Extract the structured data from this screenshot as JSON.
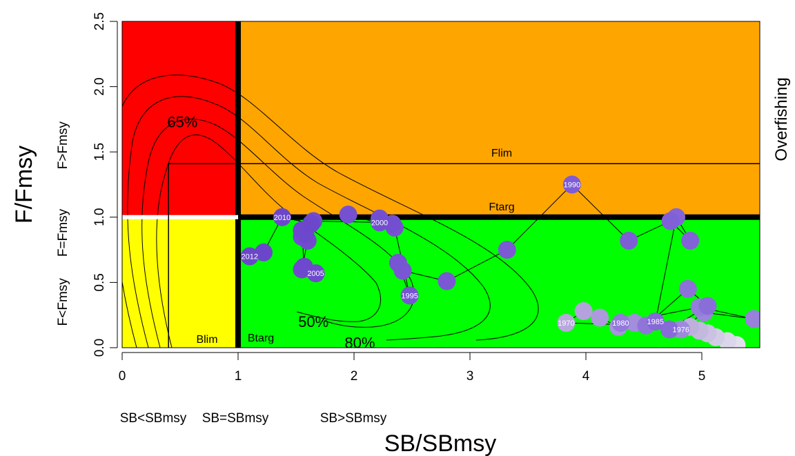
{
  "chart_data": {
    "type": "scatter",
    "xlabel": "SB/SBmsy",
    "ylabel": "F/Fmsy",
    "right_label": "Overfishing",
    "xlim": [
      0,
      5.5
    ],
    "ylim": [
      0,
      2.5
    ],
    "x_ticks": [
      0,
      1,
      2,
      3,
      4,
      5
    ],
    "y_ticks": [
      0.0,
      0.5,
      1.0,
      1.5,
      2.0,
      2.5
    ],
    "y_tick_labels": [
      "0.0",
      "0.5",
      "1.0",
      "1.5",
      "2.0",
      "2.5"
    ],
    "y_side_labels": [
      "F<Fmsy",
      "F=Fmsy",
      "F>Fmsy"
    ],
    "x_side_labels": [
      "SB<SBmsy",
      "SB=SBmsy",
      "SB>SBmsy"
    ],
    "zones": [
      {
        "name": "overfished-overfishing",
        "x": [
          0,
          1
        ],
        "y": [
          1,
          2.5
        ],
        "color": "#ff0000"
      },
      {
        "name": "not-overfished-overfishing",
        "x": [
          1,
          5.5
        ],
        "y": [
          1,
          2.5
        ],
        "color": "#ffa500"
      },
      {
        "name": "overfished-no-overfishing",
        "x": [
          0,
          1
        ],
        "y": [
          0,
          1
        ],
        "color": "#ffff00"
      },
      {
        "name": "sustainable",
        "x": [
          1,
          5.5
        ],
        "y": [
          0,
          1
        ],
        "color": "#00ff00"
      }
    ],
    "reference_lines": {
      "Flim": 1.41,
      "Ftarg": 1.0,
      "Blim": 0.4,
      "Btarg": 1.0
    },
    "reference_labels": {
      "Flim": "Flim",
      "Ftarg": "Ftarg",
      "Blim": "Blim",
      "Btarg": "Btarg"
    },
    "contour_labels": [
      {
        "text": "65%",
        "x": 0.52,
        "y": 1.73
      },
      {
        "text": "50%",
        "x": 1.65,
        "y": 0.2
      },
      {
        "text": "80%",
        "x": 2.05,
        "y": 0.04
      }
    ],
    "trajectory": [
      {
        "year": "",
        "x": 5.3,
        "y": 0.02,
        "c": "#e3dfee"
      },
      {
        "year": "",
        "x": 5.22,
        "y": 0.05,
        "c": "#dcd6ea"
      },
      {
        "year": "",
        "x": 5.12,
        "y": 0.08,
        "c": "#d3cce6"
      },
      {
        "year": "",
        "x": 5.05,
        "y": 0.11,
        "c": "#cbc2e2"
      },
      {
        "year": "",
        "x": 4.98,
        "y": 0.13,
        "c": "#c3b8de"
      },
      {
        "year": "",
        "x": 4.9,
        "y": 0.16,
        "c": "#bdb0dc"
      },
      {
        "year": "1970",
        "x": 3.83,
        "y": 0.19,
        "c": "#b8a8dc"
      },
      {
        "year": "",
        "x": 3.98,
        "y": 0.28,
        "c": "#b4a2dc"
      },
      {
        "year": "",
        "x": 4.12,
        "y": 0.23,
        "c": "#ad9adc"
      },
      {
        "year": "",
        "x": 4.28,
        "y": 0.16,
        "c": "#a894dc"
      },
      {
        "year": "",
        "x": 4.42,
        "y": 0.19,
        "c": "#a28edc"
      },
      {
        "year": "1976",
        "x": 4.82,
        "y": 0.14,
        "c": "#9f89dc"
      },
      {
        "year": "",
        "x": 5.02,
        "y": 0.27,
        "c": "#9b84dc"
      },
      {
        "year": "",
        "x": 5.45,
        "y": 0.22,
        "c": "#9880db"
      },
      {
        "year": "",
        "x": 4.98,
        "y": 0.31,
        "c": "#957ddb"
      },
      {
        "year": "1980",
        "x": 4.3,
        "y": 0.19,
        "c": "#9279da"
      },
      {
        "year": "",
        "x": 4.52,
        "y": 0.17,
        "c": "#9075d9"
      },
      {
        "year": "",
        "x": 4.88,
        "y": 0.45,
        "c": "#8d71d9"
      },
      {
        "year": "",
        "x": 5.05,
        "y": 0.32,
        "c": "#8a6ed8"
      },
      {
        "year": "",
        "x": 4.72,
        "y": 0.14,
        "c": "#886bd8"
      },
      {
        "year": "1985",
        "x": 4.6,
        "y": 0.2,
        "c": "#8668d7"
      },
      {
        "year": "",
        "x": 4.78,
        "y": 1.0,
        "c": "#8465d7"
      },
      {
        "year": "",
        "x": 4.9,
        "y": 0.82,
        "c": "#8262d6"
      },
      {
        "year": "",
        "x": 4.73,
        "y": 0.97,
        "c": "#8060d6"
      },
      {
        "year": "",
        "x": 4.37,
        "y": 0.82,
        "c": "#7e5ed5"
      },
      {
        "year": "1990",
        "x": 3.88,
        "y": 1.25,
        "c": "#7d5cd5"
      },
      {
        "year": "",
        "x": 3.32,
        "y": 0.75,
        "c": "#7b5ad4"
      },
      {
        "year": "",
        "x": 2.8,
        "y": 0.51,
        "c": "#7a58d4"
      },
      {
        "year": "",
        "x": 2.42,
        "y": 0.59,
        "c": "#7956d3"
      },
      {
        "year": "",
        "x": 2.38,
        "y": 0.65,
        "c": "#7855d3"
      },
      {
        "year": "1995",
        "x": 2.48,
        "y": 0.4,
        "c": "#7754d2"
      },
      {
        "year": "",
        "x": 2.35,
        "y": 0.92,
        "c": "#7652d2"
      },
      {
        "year": "",
        "x": 1.95,
        "y": 1.02,
        "c": "#7551d1"
      },
      {
        "year": "",
        "x": 2.22,
        "y": 0.99,
        "c": "#7450d1"
      },
      {
        "year": "",
        "x": 2.33,
        "y": 0.95,
        "c": "#734fd0"
      },
      {
        "year": "2000",
        "x": 2.22,
        "y": 0.96,
        "c": "#724ed0"
      },
      {
        "year": "",
        "x": 1.65,
        "y": 0.97,
        "c": "#714dcf"
      },
      {
        "year": "",
        "x": 1.55,
        "y": 0.85,
        "c": "#714ccf"
      },
      {
        "year": "",
        "x": 1.6,
        "y": 0.82,
        "c": "#704bce"
      },
      {
        "year": "",
        "x": 1.55,
        "y": 0.6,
        "c": "#6f4ace"
      },
      {
        "year": "2005",
        "x": 1.67,
        "y": 0.57,
        "c": "#6f4acd"
      },
      {
        "year": "",
        "x": 1.57,
        "y": 0.62,
        "c": "#6e49cd"
      },
      {
        "year": "",
        "x": 1.55,
        "y": 0.9,
        "c": "#6e48cc"
      },
      {
        "year": "",
        "x": 1.58,
        "y": 0.87,
        "c": "#6d48cc"
      },
      {
        "year": "",
        "x": 1.63,
        "y": 0.95,
        "c": "#6d47cb"
      },
      {
        "year": "2010",
        "x": 1.38,
        "y": 1.0,
        "c": "#6c47cb"
      },
      {
        "year": "",
        "x": 1.22,
        "y": 0.73,
        "c": "#6c46ca"
      },
      {
        "year": "2012",
        "x": 1.1,
        "y": 0.7,
        "c": "#6b46ca"
      }
    ]
  }
}
